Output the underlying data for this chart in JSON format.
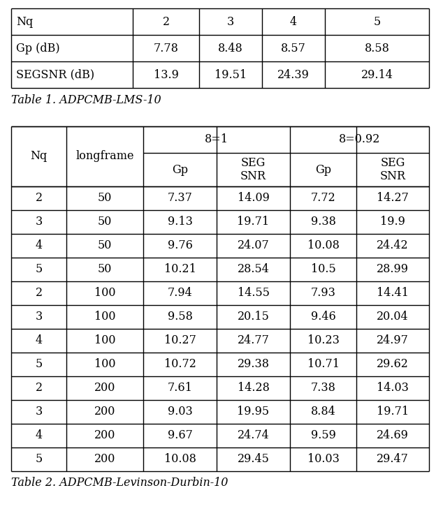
{
  "table1": {
    "caption": "Table 1. ADPCMB-LMS-10",
    "headers": [
      "Nq",
      "2",
      "3",
      "4",
      "5"
    ],
    "rows": [
      [
        "Gp (dB)",
        "7.78",
        "8.48",
        "8.57",
        "8.58"
      ],
      [
        "SEGSNR (dB)",
        "13.9",
        "19.51",
        "24.39",
        "29.14"
      ]
    ]
  },
  "table2": {
    "caption": "Table 2. ADPCMB-Levinson-Durbin-10",
    "rows": [
      [
        "2",
        "50",
        "7.37",
        "14.09",
        "7.72",
        "14.27"
      ],
      [
        "3",
        "50",
        "9.13",
        "19.71",
        "9.38",
        "19.9"
      ],
      [
        "4",
        "50",
        "9.76",
        "24.07",
        "10.08",
        "24.42"
      ],
      [
        "5",
        "50",
        "10.21",
        "28.54",
        "10.5",
        "28.99"
      ],
      [
        "2",
        "100",
        "7.94",
        "14.55",
        "7.93",
        "14.41"
      ],
      [
        "3",
        "100",
        "9.58",
        "20.15",
        "9.46",
        "20.04"
      ],
      [
        "4",
        "100",
        "10.27",
        "24.77",
        "10.23",
        "24.97"
      ],
      [
        "5",
        "100",
        "10.72",
        "29.38",
        "10.71",
        "29.62"
      ],
      [
        "2",
        "200",
        "7.61",
        "14.28",
        "7.38",
        "14.03"
      ],
      [
        "3",
        "200",
        "9.03",
        "19.95",
        "8.84",
        "19.71"
      ],
      [
        "4",
        "200",
        "9.67",
        "24.74",
        "9.59",
        "24.69"
      ],
      [
        "5",
        "200",
        "10.08",
        "29.45",
        "10.03",
        "29.47"
      ]
    ]
  },
  "bg_color": "#ffffff",
  "line_color": "#000000",
  "text_color": "#000000",
  "font_size": 11.5
}
